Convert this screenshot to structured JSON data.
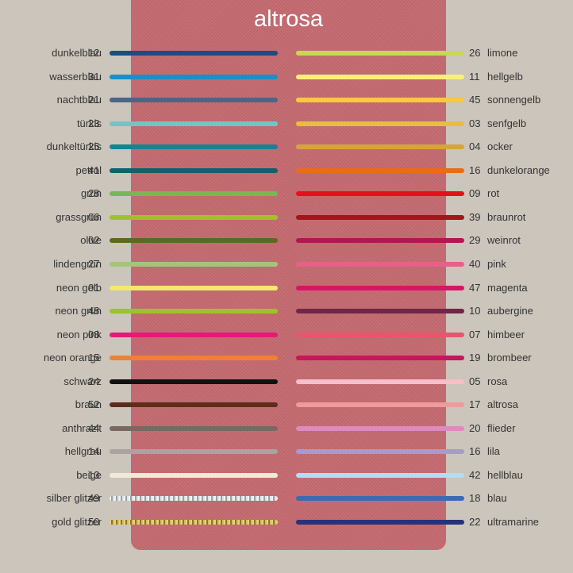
{
  "title": "altrosa",
  "left": [
    {
      "name": "dunkelblau",
      "num": "12",
      "color": "#1d4e79"
    },
    {
      "name": "wasserblau",
      "num": "31",
      "color": "#1b8fc8"
    },
    {
      "name": "nachtblau",
      "num": "21",
      "color": "#4e6485"
    },
    {
      "name": "türkis",
      "num": "23",
      "color": "#6fc7c2"
    },
    {
      "name": "dunkeltürkis",
      "num": "25",
      "color": "#14839a"
    },
    {
      "name": "petrol",
      "num": "41",
      "color": "#10616a"
    },
    {
      "name": "grün",
      "num": "28",
      "color": "#7bb556"
    },
    {
      "name": "grassgrün",
      "num": "06",
      "color": "#a1c12c"
    },
    {
      "name": "olive",
      "num": "02",
      "color": "#5d6a1e"
    },
    {
      "name": "lindengrün",
      "num": "27",
      "color": "#a5c47a"
    },
    {
      "name": "neon gelb",
      "num": "01",
      "color": "#f3e96b"
    },
    {
      "name": "neon grün",
      "num": "48",
      "color": "#9cc32a"
    },
    {
      "name": "neon pink",
      "num": "08",
      "color": "#e5197b"
    },
    {
      "name": "neon orange",
      "num": "15",
      "color": "#f08033"
    },
    {
      "name": "schwarz",
      "num": "24",
      "color": "#111111"
    },
    {
      "name": "braun",
      "num": "52",
      "color": "#5e2d1a"
    },
    {
      "name": "anthrazit",
      "num": "44",
      "color": "#7a6863"
    },
    {
      "name": "hellgrau",
      "num": "14",
      "color": "#a7a4a2"
    },
    {
      "name": "beige",
      "num": "13",
      "color": "#f2e9d6"
    },
    {
      "name": "silber glitzer",
      "num": "49",
      "color": "#c8ccd0"
    },
    {
      "name": "gold glitzer",
      "num": "50",
      "color": "#c9ad55"
    }
  ],
  "right": [
    {
      "name": "limone",
      "num": "26",
      "color": "#ccd652"
    },
    {
      "name": "hellgelb",
      "num": "11",
      "color": "#fbef79"
    },
    {
      "name": "sonnengelb",
      "num": "45",
      "color": "#fbc93e"
    },
    {
      "name": "senfgelb",
      "num": "03",
      "color": "#e6bf3d"
    },
    {
      "name": "ocker",
      "num": "04",
      "color": "#d6a43f"
    },
    {
      "name": "dunkelorange",
      "num": "16",
      "color": "#ea6c14"
    },
    {
      "name": "rot",
      "num": "09",
      "color": "#e4111b"
    },
    {
      "name": "braunrot",
      "num": "39",
      "color": "#a5141a"
    },
    {
      "name": "weinrot",
      "num": "29",
      "color": "#b31652"
    },
    {
      "name": "pink",
      "num": "40",
      "color": "#e8608a"
    },
    {
      "name": "magenta",
      "num": "47",
      "color": "#d81565"
    },
    {
      "name": "aubergine",
      "num": "10",
      "color": "#6e2649"
    },
    {
      "name": "himbeer",
      "num": "07",
      "color": "#e8566b"
    },
    {
      "name": "brombeer",
      "num": "19",
      "color": "#c8155e"
    },
    {
      "name": "rosa",
      "num": "05",
      "color": "#f6bfca"
    },
    {
      "name": "altrosa",
      "num": "17",
      "color": "#ef9b9b"
    },
    {
      "name": "flieder",
      "num": "20",
      "color": "#dc8bc0"
    },
    {
      "name": "lila",
      "num": "16",
      "color": "#a49bd2"
    },
    {
      "name": "hellblau",
      "num": "42",
      "color": "#b3ddf0"
    },
    {
      "name": "blau",
      "num": "18",
      "color": "#3d6bb3"
    },
    {
      "name": "ultramarine",
      "num": "22",
      "color": "#263279"
    }
  ]
}
